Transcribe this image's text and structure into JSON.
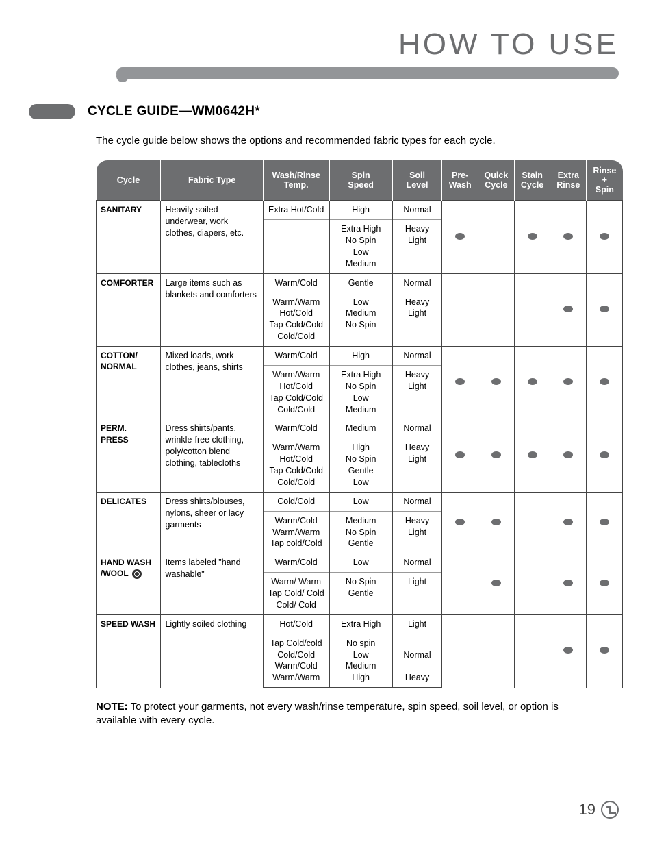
{
  "colors": {
    "gray": "#6d6e70",
    "barGray": "#939598",
    "text": "#000000",
    "bg": "#ffffff",
    "rule": "#444444"
  },
  "page": {
    "title": "HOW TO USE",
    "sectionTitle": "CYCLE GUIDE—WM0642H*",
    "intro": "The cycle guide below shows the options and recommended fabric types for each cycle.",
    "note_label": "NOTE:",
    "note_body": " To protect your garments, not every wash/rinse temperature, spin speed, soil level, or option is available with every cycle.",
    "pageNumber": "19"
  },
  "table": {
    "headers": [
      "Cycle",
      "Fabric Type",
      "Wash/Rinse Temp.",
      "Spin Speed",
      "Soil Level",
      "Pre-Wash",
      "Quick Cycle",
      "Stain Cycle",
      "Extra Rinse",
      "Rinse + Spin"
    ],
    "rows": [
      {
        "cycle": "SANITARY",
        "fabric": "Heavily soiled underwear, work clothes, diapers, etc.",
        "top": {
          "temp": "Extra Hot/Cold",
          "spin": "High",
          "soil": "Normal"
        },
        "sub": {
          "temp": "",
          "spin": "Extra High\nNo Spin\nLow\nMedium",
          "soil": "Heavy\nLight"
        },
        "opts": [
          true,
          false,
          true,
          true,
          true
        ]
      },
      {
        "cycle": "COMFORTER",
        "fabric": "Large items such as blankets and comforters",
        "top": {
          "temp": "Warm/Cold",
          "spin": "Gentle",
          "soil": "Normal"
        },
        "sub": {
          "temp": "Warm/Warm\nHot/Cold\nTap Cold/Cold\nCold/Cold",
          "spin": "Low\nMedium\nNo Spin",
          "soil": "Heavy\nLight"
        },
        "opts": [
          false,
          false,
          false,
          true,
          true
        ]
      },
      {
        "cycle": "COTTON/ NORMAL",
        "fabric": "Mixed loads, work clothes, jeans, shirts",
        "top": {
          "temp": "Warm/Cold",
          "spin": "High",
          "soil": "Normal"
        },
        "sub": {
          "temp": "Warm/Warm\nHot/Cold\nTap Cold/Cold\nCold/Cold",
          "spin": "Extra High\nNo Spin\nLow\nMedium",
          "soil": "Heavy\nLight"
        },
        "opts": [
          true,
          true,
          true,
          true,
          true
        ]
      },
      {
        "cycle": "PERM. PRESS",
        "fabric": "Dress shirts/pants, wrinkle-free clothing, poly/cotton blend clothing, tablecloths",
        "top": {
          "temp": "Warm/Cold",
          "spin": "Medium",
          "soil": "Normal"
        },
        "sub": {
          "temp": "Warm/Warm\nHot/Cold\nTap Cold/Cold\nCold/Cold",
          "spin": "High\nNo Spin\nGentle\nLow",
          "soil": "Heavy\nLight"
        },
        "opts": [
          true,
          true,
          true,
          true,
          true
        ]
      },
      {
        "cycle": "DELICATES",
        "fabric": "Dress shirts/blouses, nylons, sheer or lacy garments",
        "top": {
          "temp": "Cold/Cold",
          "spin": "Low",
          "soil": "Normal"
        },
        "sub": {
          "temp": "Warm/Cold\nWarm/Warm\nTap cold/Cold",
          "spin": "Medium\nNo Spin\nGentle",
          "soil": "Heavy\nLight"
        },
        "opts": [
          true,
          true,
          false,
          true,
          true
        ]
      },
      {
        "cycle": "HAND WASH /WOOL",
        "cycle_icon": "wool",
        "fabric": "Items labeled \"hand washable\"",
        "top": {
          "temp": "Warm/Cold",
          "spin": "Low",
          "soil": "Normal"
        },
        "sub": {
          "temp": "Warm/ Warm\nTap Cold/ Cold\nCold/ Cold",
          "spin": "No Spin\nGentle",
          "soil": "Light"
        },
        "opts": [
          false,
          true,
          false,
          true,
          true
        ]
      },
      {
        "cycle": "SPEED WASH",
        "fabric": "Lightly soiled clothing",
        "top": {
          "temp": "Hot/Cold",
          "spin": "Extra High",
          "soil": "Light"
        },
        "sub": {
          "temp": "Tap Cold/cold\nCold/Cold\nWarm/Cold\nWarm/Warm",
          "spin": "No spin\nLow\nMedium\nHigh",
          "soil": "\nNormal\n\nHeavy"
        },
        "opts": [
          false,
          false,
          false,
          true,
          true
        ]
      }
    ]
  }
}
